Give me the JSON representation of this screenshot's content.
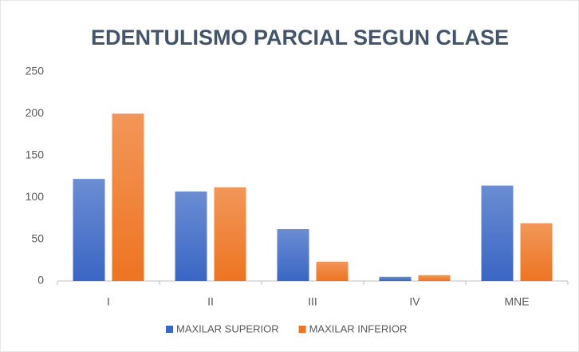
{
  "chart_data": {
    "type": "bar",
    "title": "EDENTULISMO  PARCIAL SEGUN CLASE",
    "categories": [
      "I",
      "II",
      "III",
      "IV",
      "MNE"
    ],
    "series": [
      {
        "name": "MAXILAR SUPERIOR",
        "color": "#3a66c4",
        "values": [
          122,
          107,
          62,
          5,
          114
        ]
      },
      {
        "name": "MAXILAR INFERIOR",
        "color": "#ed7422",
        "values": [
          200,
          112,
          23,
          7,
          69
        ]
      }
    ],
    "ylim": [
      0,
      250
    ],
    "yticks": [
      0,
      50,
      100,
      150,
      200,
      250
    ],
    "grid": false,
    "legend": "bottom"
  }
}
